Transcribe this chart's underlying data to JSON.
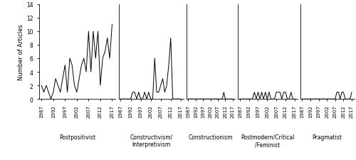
{
  "years": [
    1987,
    1988,
    1989,
    1990,
    1991,
    1992,
    1993,
    1994,
    1995,
    1996,
    1997,
    1998,
    1999,
    2000,
    2001,
    2002,
    2003,
    2004,
    2005,
    2006,
    2007,
    2008,
    2009,
    2010,
    2011,
    2012,
    2013,
    2014,
    2015,
    2016,
    2017
  ],
  "postpositivist": [
    2,
    1,
    2,
    1,
    0,
    1,
    3,
    2,
    1,
    3,
    5,
    1,
    6,
    5,
    2,
    1,
    3,
    5,
    6,
    4,
    10,
    4,
    10,
    6,
    10,
    2,
    6,
    7,
    9,
    6,
    11
  ],
  "constructivism": [
    0,
    0,
    0,
    0,
    0,
    0,
    1,
    1,
    0,
    1,
    0,
    0,
    1,
    0,
    1,
    0,
    0,
    6,
    1,
    1,
    2,
    3,
    1,
    2,
    5,
    9,
    0,
    0,
    0,
    0,
    0
  ],
  "constructionism": [
    0,
    0,
    0,
    0,
    0,
    0,
    0,
    0,
    0,
    0,
    0,
    0,
    0,
    0,
    0,
    0,
    0,
    0,
    0,
    0,
    0,
    0,
    0,
    0,
    1,
    0,
    0,
    0,
    0,
    0,
    0
  ],
  "postmodern": [
    0,
    0,
    0,
    0,
    0,
    0,
    0,
    0,
    1,
    0,
    1,
    0,
    1,
    0,
    1,
    0,
    1,
    0,
    0,
    0,
    1,
    1,
    1,
    0,
    1,
    1,
    0,
    0,
    1,
    0,
    0
  ],
  "pragmatist": [
    0,
    0,
    0,
    0,
    0,
    0,
    0,
    0,
    0,
    0,
    0,
    0,
    0,
    0,
    0,
    0,
    0,
    0,
    0,
    0,
    0,
    1,
    1,
    0,
    1,
    1,
    0,
    0,
    0,
    0,
    1
  ],
  "section_labels": [
    "Postpositivist",
    "Constructivism/\nInterpretivism",
    "Constructionism",
    "Postmodern/Critical\n/Feminist",
    "Pragmatist"
  ],
  "ylabel": "Number of Articles",
  "ylim": [
    0,
    14
  ],
  "yticks": [
    0,
    2,
    4,
    6,
    8,
    10,
    12,
    14
  ],
  "tick_years": [
    1987,
    1992,
    1997,
    2002,
    2007,
    2012,
    2017
  ],
  "width_ratios": [
    1.35,
    1.15,
    0.85,
    1.05,
    0.95
  ],
  "background_color": "#ffffff",
  "line_color": "#000000",
  "linewidth": 0.7
}
